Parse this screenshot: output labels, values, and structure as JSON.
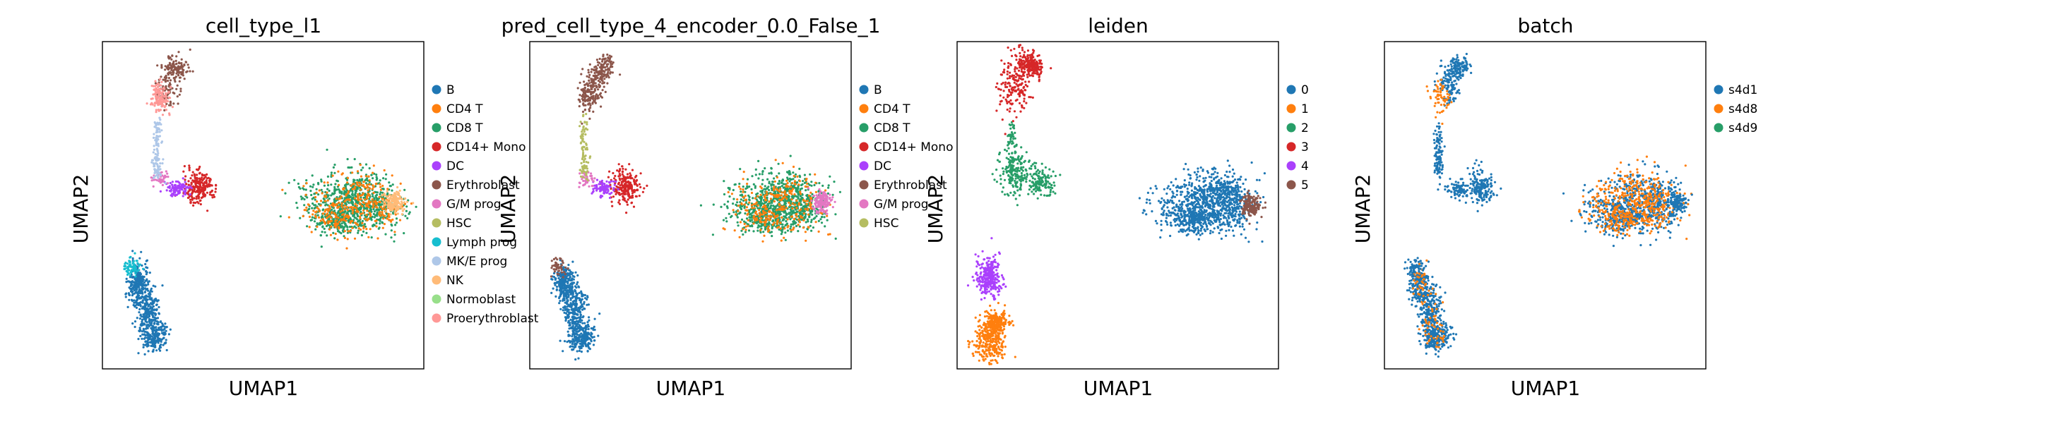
{
  "figure": {
    "panels": [
      {
        "title": "cell_type_l1",
        "xlabel": "UMAP1",
        "ylabel": "UMAP2"
      },
      {
        "title": "pred_cell_type_4_encoder_0.0_False_1",
        "xlabel": "UMAP1",
        "ylabel": "UMAP2"
      },
      {
        "title": "leiden",
        "xlabel": "UMAP1",
        "ylabel": "UMAP2"
      },
      {
        "title": "batch",
        "xlabel": "UMAP1",
        "ylabel": "UMAP2"
      }
    ]
  },
  "chart_data": [
    {
      "type": "scatter",
      "title": "cell_type_l1",
      "xlabel": "UMAP1",
      "ylabel": "UMAP2",
      "grid": false,
      "legend_placement": "right-outside",
      "series": [
        {
          "name": "B",
          "color": "#1f77b4"
        },
        {
          "name": "CD4 T",
          "color": "#ff7f0e"
        },
        {
          "name": "CD8 T",
          "color": "#279e68"
        },
        {
          "name": "CD14+ Mono",
          "color": "#d62728"
        },
        {
          "name": "DC",
          "color": "#aa40fc"
        },
        {
          "name": "Erythroblast",
          "color": "#8c564b"
        },
        {
          "name": "G/M prog",
          "color": "#e377c2"
        },
        {
          "name": "HSC",
          "color": "#b5bd61"
        },
        {
          "name": "Lymph prog",
          "color": "#17becf"
        },
        {
          "name": "MK/E prog",
          "color": "#aec7e8"
        },
        {
          "name": "NK",
          "color": "#ffbb78"
        },
        {
          "name": "Normoblast",
          "color": "#98df8a"
        },
        {
          "name": "Proerythroblast",
          "color": "#ff9896"
        }
      ]
    },
    {
      "type": "scatter",
      "title": "pred_cell_type_4_encoder_0.0_False_1",
      "xlabel": "UMAP1",
      "ylabel": "UMAP2",
      "grid": false,
      "legend_placement": "right-outside",
      "series": [
        {
          "name": "B",
          "color": "#1f77b4"
        },
        {
          "name": "CD4 T",
          "color": "#ff7f0e"
        },
        {
          "name": "CD8 T",
          "color": "#279e68"
        },
        {
          "name": "CD14+ Mono",
          "color": "#d62728"
        },
        {
          "name": "DC",
          "color": "#aa40fc"
        },
        {
          "name": "Erythroblast",
          "color": "#8c564b"
        },
        {
          "name": "G/M prog",
          "color": "#e377c2"
        },
        {
          "name": "HSC",
          "color": "#b5bd61"
        }
      ]
    },
    {
      "type": "scatter",
      "title": "leiden",
      "xlabel": "UMAP1",
      "ylabel": "UMAP2",
      "grid": false,
      "legend_placement": "right-outside",
      "series": [
        {
          "name": "0",
          "color": "#1f77b4"
        },
        {
          "name": "1",
          "color": "#ff7f0e"
        },
        {
          "name": "2",
          "color": "#279e68"
        },
        {
          "name": "3",
          "color": "#d62728"
        },
        {
          "name": "4",
          "color": "#aa40fc"
        },
        {
          "name": "5",
          "color": "#8c564b"
        }
      ]
    },
    {
      "type": "scatter",
      "title": "batch",
      "xlabel": "UMAP1",
      "ylabel": "UMAP2",
      "grid": false,
      "legend_placement": "right-outside",
      "series": [
        {
          "name": "s4d1",
          "color": "#1f77b4"
        },
        {
          "name": "s4d8",
          "color": "#ff7f0e"
        },
        {
          "name": "s4d9",
          "color": "#279e68"
        }
      ]
    }
  ]
}
